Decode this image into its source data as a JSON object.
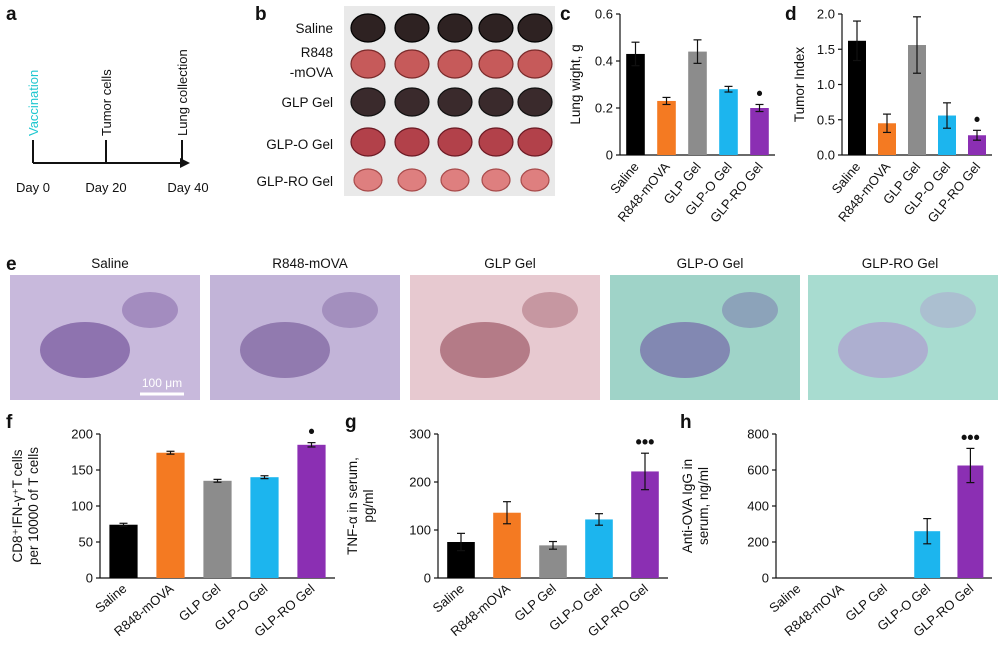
{
  "panel_labels": {
    "a": "a",
    "b": "b",
    "c": "c",
    "d": "d",
    "e": "e",
    "f": "f",
    "g": "g",
    "h": "h"
  },
  "timeline": {
    "events": [
      "Vaccination",
      "Tumor cells",
      "Lung collection"
    ],
    "days": [
      "Day 0",
      "Day 20",
      "Day 40"
    ],
    "event_colors": [
      "#1fc7d0",
      "#111111",
      "#111111"
    ]
  },
  "groups": [
    "Saline",
    "R848-mOVA",
    "GLP Gel",
    "GLP-O Gel",
    "GLP-RO Gel"
  ],
  "group_colors": [
    "#000000",
    "#f47a22",
    "#8c8c8c",
    "#1cb5ee",
    "#8b2fb3"
  ],
  "lung_photo_labels": [
    "Saline",
    "R848\n-mOVA",
    "GLP Gel",
    "GLP-O Gel",
    "GLP-RO Gel"
  ],
  "histology": {
    "labels": [
      "Saline",
      "R848-mOVA",
      "GLP Gel",
      "GLP-O Gel",
      "GLP-RO Gel"
    ],
    "scale_bar": "100 μm"
  },
  "chart_data": [
    {
      "id": "c",
      "type": "bar",
      "categories": [
        "Saline",
        "R848-mOVA",
        "GLP Gel",
        "GLP-O Gel",
        "GLP-RO Gel"
      ],
      "values": [
        0.43,
        0.23,
        0.44,
        0.28,
        0.2
      ],
      "errors": [
        0.05,
        0.015,
        0.05,
        0.012,
        0.015
      ],
      "ylabel": "Lung wight, g",
      "ylim": [
        0,
        0.6
      ],
      "yticks": [
        "0",
        "0.2",
        "0.4",
        "0.6"
      ],
      "tickvals": [
        0,
        0.2,
        0.4,
        0.6
      ],
      "significance": [
        "",
        "",
        "",
        "",
        "•"
      ]
    },
    {
      "id": "d",
      "type": "bar",
      "categories": [
        "Saline",
        "R848-mOVA",
        "GLP Gel",
        "GLP-O Gel",
        "GLP-RO Gel"
      ],
      "values": [
        1.62,
        0.45,
        1.56,
        0.56,
        0.28
      ],
      "errors": [
        0.28,
        0.13,
        0.4,
        0.18,
        0.07
      ],
      "ylabel": "Tumor Index",
      "ylim": [
        0,
        2.0
      ],
      "yticks": [
        "0.0",
        "0.5",
        "1.0",
        "1.5",
        "2.0"
      ],
      "tickvals": [
        0,
        0.5,
        1.0,
        1.5,
        2.0
      ],
      "significance": [
        "",
        "",
        "",
        "",
        "•"
      ]
    },
    {
      "id": "f",
      "type": "bar",
      "categories": [
        "Saline",
        "R848-mOVA",
        "GLP Gel",
        "GLP-O Gel",
        "GLP-RO Gel"
      ],
      "values": [
        74,
        174,
        135,
        140,
        185
      ],
      "errors": [
        2,
        2,
        2,
        2,
        3
      ],
      "ylabel_lines": [
        "CD8⁺IFN-γ⁺T cells",
        "per 10000 of T cells"
      ],
      "ylim": [
        0,
        200
      ],
      "yticks": [
        "0",
        "50",
        "100",
        "150",
        "200"
      ],
      "tickvals": [
        0,
        50,
        100,
        150,
        200
      ],
      "significance": [
        "",
        "",
        "",
        "",
        "•"
      ]
    },
    {
      "id": "g",
      "type": "bar",
      "categories": [
        "Saline",
        "R848-mOVA",
        "GLP Gel",
        "GLP-O Gel",
        "GLP-RO Gel"
      ],
      "values": [
        75,
        136,
        68,
        122,
        222
      ],
      "errors": [
        18,
        23,
        8,
        12,
        38
      ],
      "ylabel_lines": [
        "TNF-α in serum,",
        "pg/ml"
      ],
      "ylim": [
        0,
        300
      ],
      "yticks": [
        "0",
        "100",
        "200",
        "300"
      ],
      "tickvals": [
        0,
        100,
        200,
        300
      ],
      "significance": [
        "",
        "",
        "",
        "",
        "•••"
      ]
    },
    {
      "id": "h",
      "type": "bar",
      "categories": [
        "Saline",
        "R848-mOVA",
        "GLP Gel",
        "GLP-O Gel",
        "GLP-RO Gel"
      ],
      "values": [
        0,
        0,
        0,
        260,
        625
      ],
      "errors": [
        0,
        0,
        0,
        70,
        95
      ],
      "ylabel_lines": [
        "Anti-OVA IgG in",
        "serum, ng/ml"
      ],
      "ylim": [
        0,
        800
      ],
      "yticks": [
        "0",
        "200",
        "400",
        "600",
        "800"
      ],
      "tickvals": [
        0,
        200,
        400,
        600,
        800
      ],
      "significance": [
        "",
        "",
        "",
        "",
        "•••"
      ]
    }
  ]
}
